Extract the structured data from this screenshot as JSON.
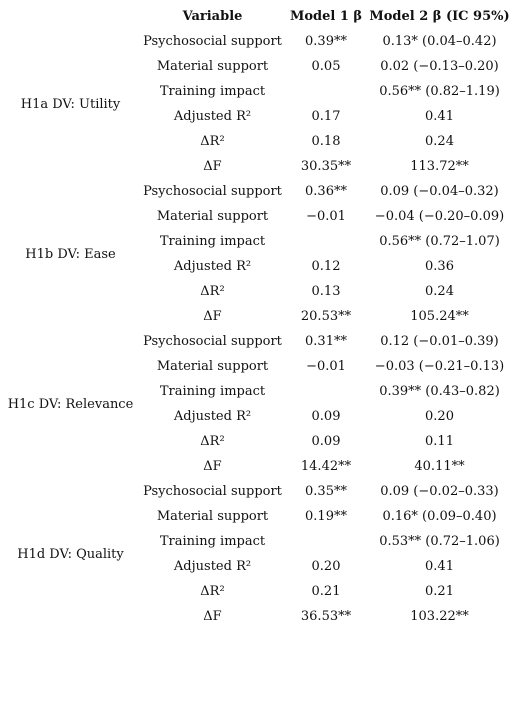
{
  "headers": [
    "",
    "Variable",
    "Model 1 β",
    "Model 2 β (IC 95%)"
  ],
  "groups": [
    {
      "label": "H1a DV: Utility",
      "rows": [
        {
          "variable": "Psychosocial support",
          "m1": "0.39**",
          "m2": "0.13* (0.04–0.42)"
        },
        {
          "variable": "Material support",
          "m1": "0.05",
          "m2": "0.02 (−0.13–0.20)"
        },
        {
          "variable": "Training impact",
          "m1": "",
          "m2": "0.56** (0.82–1.19)"
        },
        {
          "variable": "Adjusted R²",
          "m1": "0.17",
          "m2": "0.41"
        },
        {
          "variable": "ΔR²",
          "m1": "0.18",
          "m2": "0.24"
        },
        {
          "variable": "ΔF",
          "m1": "30.35**",
          "m2": "113.72**"
        }
      ]
    },
    {
      "label": "H1b DV: Ease",
      "rows": [
        {
          "variable": "Psychosocial support",
          "m1": "0.36**",
          "m2": "0.09 (−0.04–0.32)"
        },
        {
          "variable": "Material support",
          "m1": "−0.01",
          "m2": "−0.04 (−0.20–0.09)"
        },
        {
          "variable": "Training impact",
          "m1": "",
          "m2": "0.56** (0.72–1.07)"
        },
        {
          "variable": "Adjusted R²",
          "m1": "0.12",
          "m2": "0.36"
        },
        {
          "variable": "ΔR²",
          "m1": "0.13",
          "m2": "0.24"
        },
        {
          "variable": "ΔF",
          "m1": "20.53**",
          "m2": "105.24**"
        }
      ]
    },
    {
      "label": "H1c DV: Relevance",
      "rows": [
        {
          "variable": "Psychosocial support",
          "m1": "0.31**",
          "m2": "0.12 (−0.01–0.39)"
        },
        {
          "variable": "Material support",
          "m1": "−0.01",
          "m2": "−0.03 (−0.21–0.13)"
        },
        {
          "variable": "Training impact",
          "m1": "",
          "m2": "0.39** (0.43–0.82)"
        },
        {
          "variable": "Adjusted R²",
          "m1": "0.09",
          "m2": "0.20"
        },
        {
          "variable": "ΔR²",
          "m1": "0.09",
          "m2": "0.11"
        },
        {
          "variable": "ΔF",
          "m1": "14.42**",
          "m2": "40.11**"
        }
      ]
    },
    {
      "label": "H1d DV: Quality",
      "rows": [
        {
          "variable": "Psychosocial support",
          "m1": "0.35**",
          "m2": "0.09 (−0.02–0.33)"
        },
        {
          "variable": "Material support",
          "m1": "0.19**",
          "m2": "0.16* (0.09–0.40)"
        },
        {
          "variable": "Training impact",
          "m1": "",
          "m2": "0.53** (0.72–1.06)"
        },
        {
          "variable": "Adjusted R²",
          "m1": "0.20",
          "m2": "0.41"
        },
        {
          "variable": "ΔR²",
          "m1": "0.21",
          "m2": "0.21"
        },
        {
          "variable": "ΔF",
          "m1": "36.53**",
          "m2": "103.22**"
        }
      ]
    }
  ]
}
